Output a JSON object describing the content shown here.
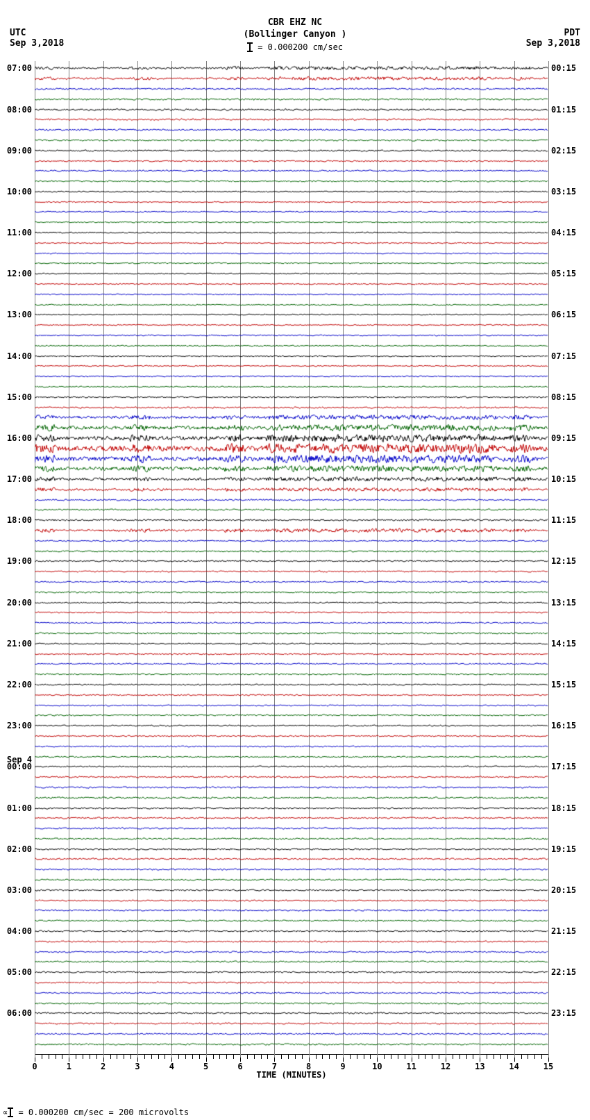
{
  "header": {
    "title_line1": "CBR EHZ NC",
    "title_line2": "(Bollinger Canyon )",
    "scale_text": " = 0.000200 cm/sec",
    "tz_left": "UTC",
    "tz_right": "PDT",
    "date_left": "Sep 3,2018",
    "date_right": "Sep 3,2018"
  },
  "x_axis": {
    "title": "TIME (MINUTES)",
    "min": 0,
    "max": 15,
    "major_step": 1,
    "minor_per_major": 4
  },
  "footer": {
    "text": " = 0.000200 cm/sec =    200 microvolts",
    "glyph_prefix": "∝"
  },
  "plot": {
    "grid_color": "#808080",
    "background_color": "#ffffff",
    "trace_colors": [
      "#000000",
      "#c00000",
      "#0000c8",
      "#006400"
    ],
    "n_lines": 96,
    "left_start_hour": 7,
    "right_start_minutes": 15,
    "left_date_change": {
      "index": 68,
      "label": "Sep 4"
    },
    "noise_amp_base": 1.2,
    "per_line_extra_amp": [
      0.8,
      0.8,
      0.6,
      0.6,
      0.6,
      0.6,
      0.5,
      0.5,
      0.3,
      0.3,
      0.3,
      0.3,
      0.0,
      0.0,
      0.0,
      0.0,
      0.0,
      0.0,
      0.0,
      0.0,
      0.0,
      0.0,
      0.0,
      0.0,
      0.0,
      0.0,
      0.0,
      0.0,
      0.0,
      0.0,
      0.0,
      0.0,
      0.3,
      0.5,
      1.5,
      2.5,
      3.0,
      4.5,
      3.5,
      2.5,
      1.5,
      1.0,
      0.5,
      0.3,
      0.6,
      1.0,
      0.3,
      0.3,
      0.3,
      0.3,
      0.3,
      0.3,
      0.2,
      0.2,
      0.2,
      0.3,
      0.2,
      0.2,
      0.2,
      0.2,
      0.2,
      0.2,
      0.2,
      0.2,
      0.2,
      0.2,
      0.2,
      0.2,
      0.3,
      0.4,
      0.5,
      0.5,
      0.4,
      0.4,
      0.5,
      0.5,
      0.5,
      0.5,
      0.4,
      0.4,
      0.4,
      0.4,
      0.4,
      0.4,
      0.4,
      0.4,
      0.4,
      0.4,
      0.4,
      0.4,
      0.4,
      0.4,
      0.4,
      0.4,
      0.4,
      0.4
    ]
  }
}
